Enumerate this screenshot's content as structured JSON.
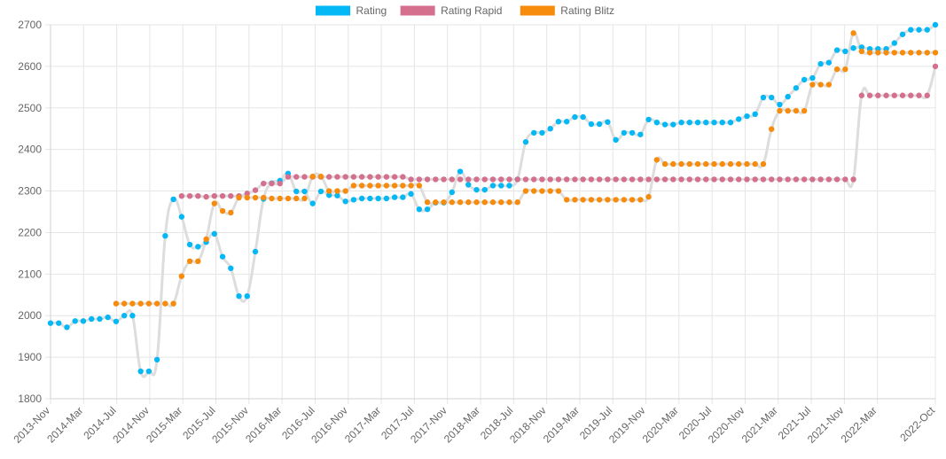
{
  "chart_data": {
    "type": "line",
    "legend_position": "top",
    "grid": true,
    "ylim": [
      1800,
      2700
    ],
    "yticks": [
      1800,
      1900,
      2000,
      2100,
      2200,
      2300,
      2400,
      2500,
      2600,
      2700
    ],
    "x_start": "2013-Nov",
    "x_end": "2022-Oct",
    "xtick_labels": [
      "2013-Nov",
      "2014-Mar",
      "2014-Jul",
      "2014-Nov",
      "2015-Mar",
      "2015-Jul",
      "2015-Nov",
      "2016-Mar",
      "2016-Jul",
      "2016-Nov",
      "2017-Mar",
      "2017-Jul",
      "2017-Nov",
      "2018-Mar",
      "2018-Jul",
      "2018-Nov",
      "2019-Mar",
      "2019-Jul",
      "2019-Nov",
      "2020-Mar",
      "2020-Jul",
      "2020-Nov",
      "2021-Mar",
      "2021-Jul",
      "2021-Nov",
      "2022-Mar",
      "2022-Oct"
    ],
    "series": [
      {
        "name": "Rating",
        "color": "#03b8f4",
        "line_color": "#dddddd",
        "values": [
          1982,
          1982,
          1972,
          1987,
          1987,
          1992,
          1992,
          1996,
          1986,
          2000,
          2000,
          1866,
          1866,
          1894,
          2192,
          2280,
          2238,
          2171,
          2166,
          2177,
          2197,
          2142,
          2114,
          2047,
          2047,
          2154,
          2281,
          2319,
          2325,
          2342,
          2299,
          2299,
          2270,
          2299,
          2290,
          2289,
          2275,
          2279,
          2282,
          2282,
          2282,
          2282,
          2285,
          2285,
          2293,
          2256,
          2256,
          2272,
          2272,
          2297,
          2347,
          2315,
          2303,
          2303,
          2313,
          2313,
          2313,
          2328,
          2418,
          2440,
          2440,
          2450,
          2467,
          2467,
          2478,
          2478,
          2461,
          2461,
          2466,
          2423,
          2440,
          2440,
          2436,
          2472,
          2465,
          2460,
          2460,
          2465,
          2465,
          2465,
          2465,
          2465,
          2465,
          2465,
          2473,
          2480,
          2485,
          2525,
          2525,
          2508,
          2527,
          2548,
          2568,
          2572,
          2606,
          2609,
          2639,
          2636,
          2644,
          2646,
          2642,
          2642,
          2642,
          2656,
          2677,
          2688,
          2688,
          2688,
          2700
        ]
      },
      {
        "name": "Rating Rapid",
        "color": "#d56f8e",
        "line_color": "#dddddd",
        "values": [
          null,
          null,
          null,
          null,
          null,
          null,
          null,
          null,
          null,
          null,
          null,
          null,
          null,
          null,
          null,
          null,
          2288,
          2288,
          2288,
          2286,
          2288,
          2288,
          2288,
          2288,
          2294,
          2302,
          2318,
          2318,
          2318,
          2334,
          2334,
          2334,
          2334,
          2334,
          2334,
          2334,
          2334,
          2334,
          2334,
          2334,
          2334,
          2334,
          2334,
          2334,
          2328,
          2328,
          2328,
          2328,
          2328,
          2328,
          2328,
          2328,
          2328,
          2328,
          2328,
          2328,
          2328,
          2328,
          2328,
          2328,
          2328,
          2328,
          2328,
          2328,
          2328,
          2328,
          2328,
          2328,
          2328,
          2328,
          2328,
          2328,
          2328,
          2328,
          2328,
          2328,
          2328,
          2328,
          2328,
          2328,
          2328,
          2328,
          2328,
          2328,
          2328,
          2328,
          2328,
          2328,
          2328,
          2328,
          2328,
          2328,
          2328,
          2328,
          2328,
          2328,
          2328,
          2328,
          2328,
          2530,
          2530,
          2530,
          2530,
          2530,
          2530,
          2530,
          2530,
          2530,
          2600
        ]
      },
      {
        "name": "Rating Blitz",
        "color": "#f68b0c",
        "line_color": "#dddddd",
        "values": [
          null,
          null,
          null,
          null,
          null,
          null,
          null,
          null,
          2029,
          2029,
          2029,
          2029,
          2029,
          2029,
          2029,
          2029,
          2095,
          2131,
          2131,
          2184,
          2270,
          2252,
          2248,
          2284,
          2284,
          2284,
          2284,
          2282,
          2282,
          2282,
          2282,
          2282,
          2335,
          2335,
          2300,
          2300,
          2300,
          2313,
          2313,
          2313,
          2313,
          2313,
          2313,
          2313,
          2313,
          2313,
          2273,
          2273,
          2273,
          2273,
          2273,
          2273,
          2273,
          2273,
          2273,
          2273,
          2273,
          2273,
          2300,
          2300,
          2300,
          2300,
          2300,
          2279,
          2279,
          2279,
          2279,
          2279,
          2279,
          2279,
          2279,
          2279,
          2279,
          2286,
          2375,
          2365,
          2365,
          2365,
          2365,
          2365,
          2365,
          2365,
          2365,
          2365,
          2365,
          2365,
          2365,
          2365,
          2449,
          2493,
          2493,
          2493,
          2493,
          2556,
          2556,
          2556,
          2593,
          2593,
          2680,
          2636,
          2633,
          2633,
          2633,
          2633,
          2633,
          2633,
          2633,
          2633,
          2633
        ]
      }
    ]
  }
}
